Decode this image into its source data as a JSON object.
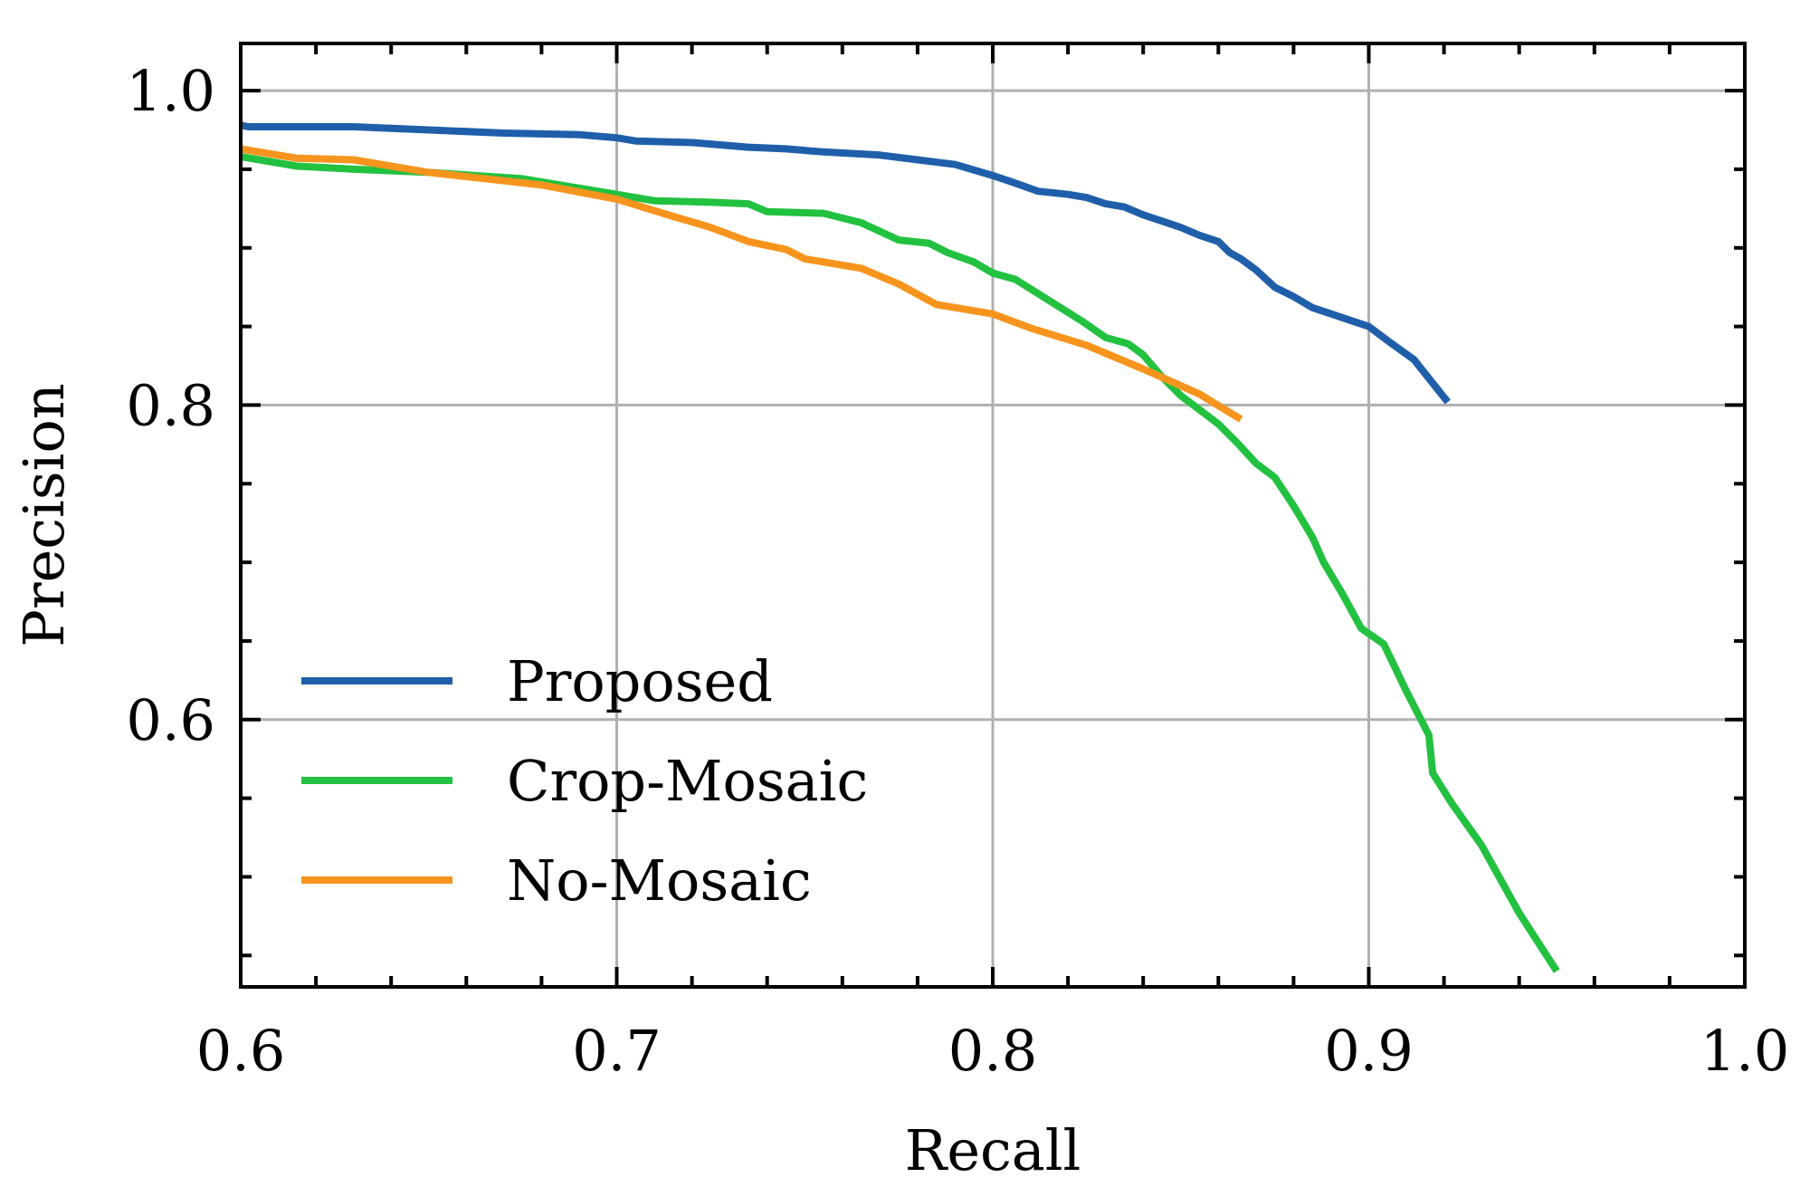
{
  "chart_data": {
    "type": "line",
    "title": "",
    "xlabel": "Recall",
    "ylabel": "Precision",
    "xlim": [
      0.6,
      1.0
    ],
    "ylim": [
      0.43,
      1.03
    ],
    "grid": true,
    "legend_position": "bottom-left",
    "x_ticks": [
      0.6,
      0.7,
      0.8,
      0.9,
      1.0
    ],
    "x_tick_labels": [
      "0.6",
      "0.7",
      "0.8",
      "0.9",
      "1.0"
    ],
    "y_ticks": [
      0.6,
      0.8,
      1.0
    ],
    "y_tick_labels": [
      "0.6",
      "0.8",
      "1.0"
    ],
    "x_minor_step": 0.02,
    "y_minor_step": 0.05,
    "series": [
      {
        "name": "Proposed",
        "color": "#1f5faa",
        "x": [
          0.6,
          0.602,
          0.61,
          0.63,
          0.65,
          0.67,
          0.69,
          0.7,
          0.705,
          0.72,
          0.735,
          0.745,
          0.755,
          0.77,
          0.78,
          0.79,
          0.8,
          0.805,
          0.812,
          0.82,
          0.825,
          0.83,
          0.835,
          0.84,
          0.845,
          0.85,
          0.855,
          0.86,
          0.863,
          0.866,
          0.87,
          0.875,
          0.88,
          0.885,
          0.89,
          0.895,
          0.9,
          0.905,
          0.912,
          0.917,
          0.921
        ],
        "y": [
          0.978,
          0.977,
          0.977,
          0.977,
          0.975,
          0.973,
          0.972,
          0.97,
          0.968,
          0.967,
          0.964,
          0.963,
          0.961,
          0.959,
          0.956,
          0.953,
          0.946,
          0.942,
          0.936,
          0.934,
          0.932,
          0.928,
          0.926,
          0.921,
          0.917,
          0.913,
          0.908,
          0.904,
          0.897,
          0.893,
          0.886,
          0.875,
          0.869,
          0.862,
          0.858,
          0.854,
          0.85,
          0.841,
          0.829,
          0.814,
          0.802
        ]
      },
      {
        "name": "Crop-Mosaic",
        "color": "#22c140",
        "x": [
          0.6,
          0.615,
          0.63,
          0.65,
          0.675,
          0.7,
          0.71,
          0.725,
          0.735,
          0.74,
          0.755,
          0.765,
          0.775,
          0.783,
          0.788,
          0.795,
          0.8,
          0.806,
          0.812,
          0.818,
          0.824,
          0.83,
          0.836,
          0.84,
          0.845,
          0.85,
          0.855,
          0.86,
          0.865,
          0.87,
          0.875,
          0.88,
          0.885,
          0.888,
          0.893,
          0.898,
          0.904,
          0.91,
          0.916,
          0.917,
          0.922,
          0.93,
          0.94,
          0.95
        ],
        "y": [
          0.958,
          0.952,
          0.95,
          0.948,
          0.944,
          0.934,
          0.93,
          0.929,
          0.928,
          0.923,
          0.922,
          0.916,
          0.905,
          0.903,
          0.897,
          0.891,
          0.884,
          0.88,
          0.871,
          0.862,
          0.853,
          0.843,
          0.839,
          0.832,
          0.818,
          0.806,
          0.797,
          0.788,
          0.776,
          0.763,
          0.754,
          0.736,
          0.716,
          0.7,
          0.68,
          0.658,
          0.648,
          0.618,
          0.59,
          0.566,
          0.547,
          0.52,
          0.477,
          0.44
        ]
      },
      {
        "name": "No-Mosaic",
        "color": "#f7941d",
        "x": [
          0.6,
          0.615,
          0.63,
          0.65,
          0.68,
          0.7,
          0.715,
          0.725,
          0.735,
          0.745,
          0.75,
          0.765,
          0.775,
          0.785,
          0.79,
          0.8,
          0.81,
          0.825,
          0.84,
          0.855,
          0.866
        ],
        "y": [
          0.963,
          0.957,
          0.956,
          0.948,
          0.94,
          0.931,
          0.92,
          0.913,
          0.904,
          0.899,
          0.893,
          0.887,
          0.877,
          0.864,
          0.862,
          0.858,
          0.849,
          0.838,
          0.823,
          0.807,
          0.791
        ]
      }
    ]
  }
}
